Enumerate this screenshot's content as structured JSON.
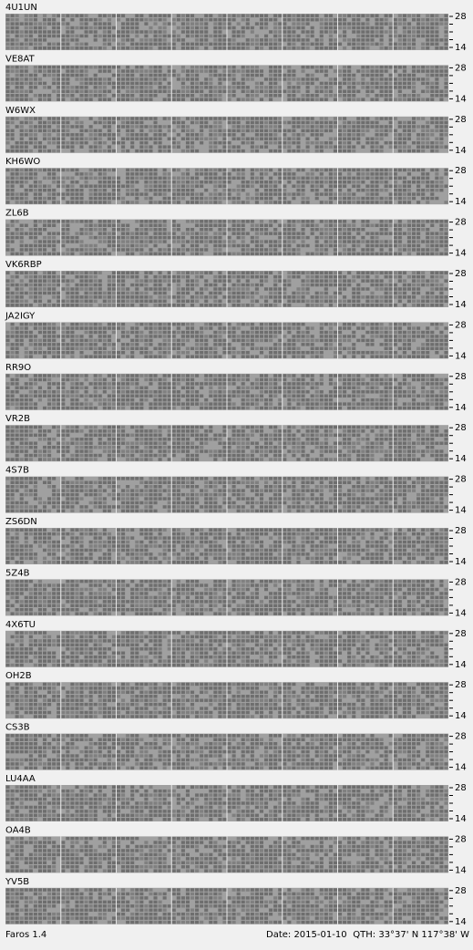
{
  "stations": [
    "4U1UN",
    "VE8AT",
    "W6WX",
    "KH6WO",
    "ZL6B",
    "VK6RBP",
    "JA2IGY",
    "RR9O",
    "VR2B",
    "4S7B",
    "ZS6DN",
    "5Z4B",
    "4X6TU",
    "OH2B",
    "CS3B",
    "LU4AA",
    "OA4B",
    "YV5B"
  ],
  "band_labels": [
    "28",
    "-",
    "-",
    "-",
    "14"
  ],
  "footer": {
    "app": "Faros 1.4",
    "date": "Date: 2015-01-10",
    "qth": "QTH: 33°37' N  117°38' W"
  }
}
